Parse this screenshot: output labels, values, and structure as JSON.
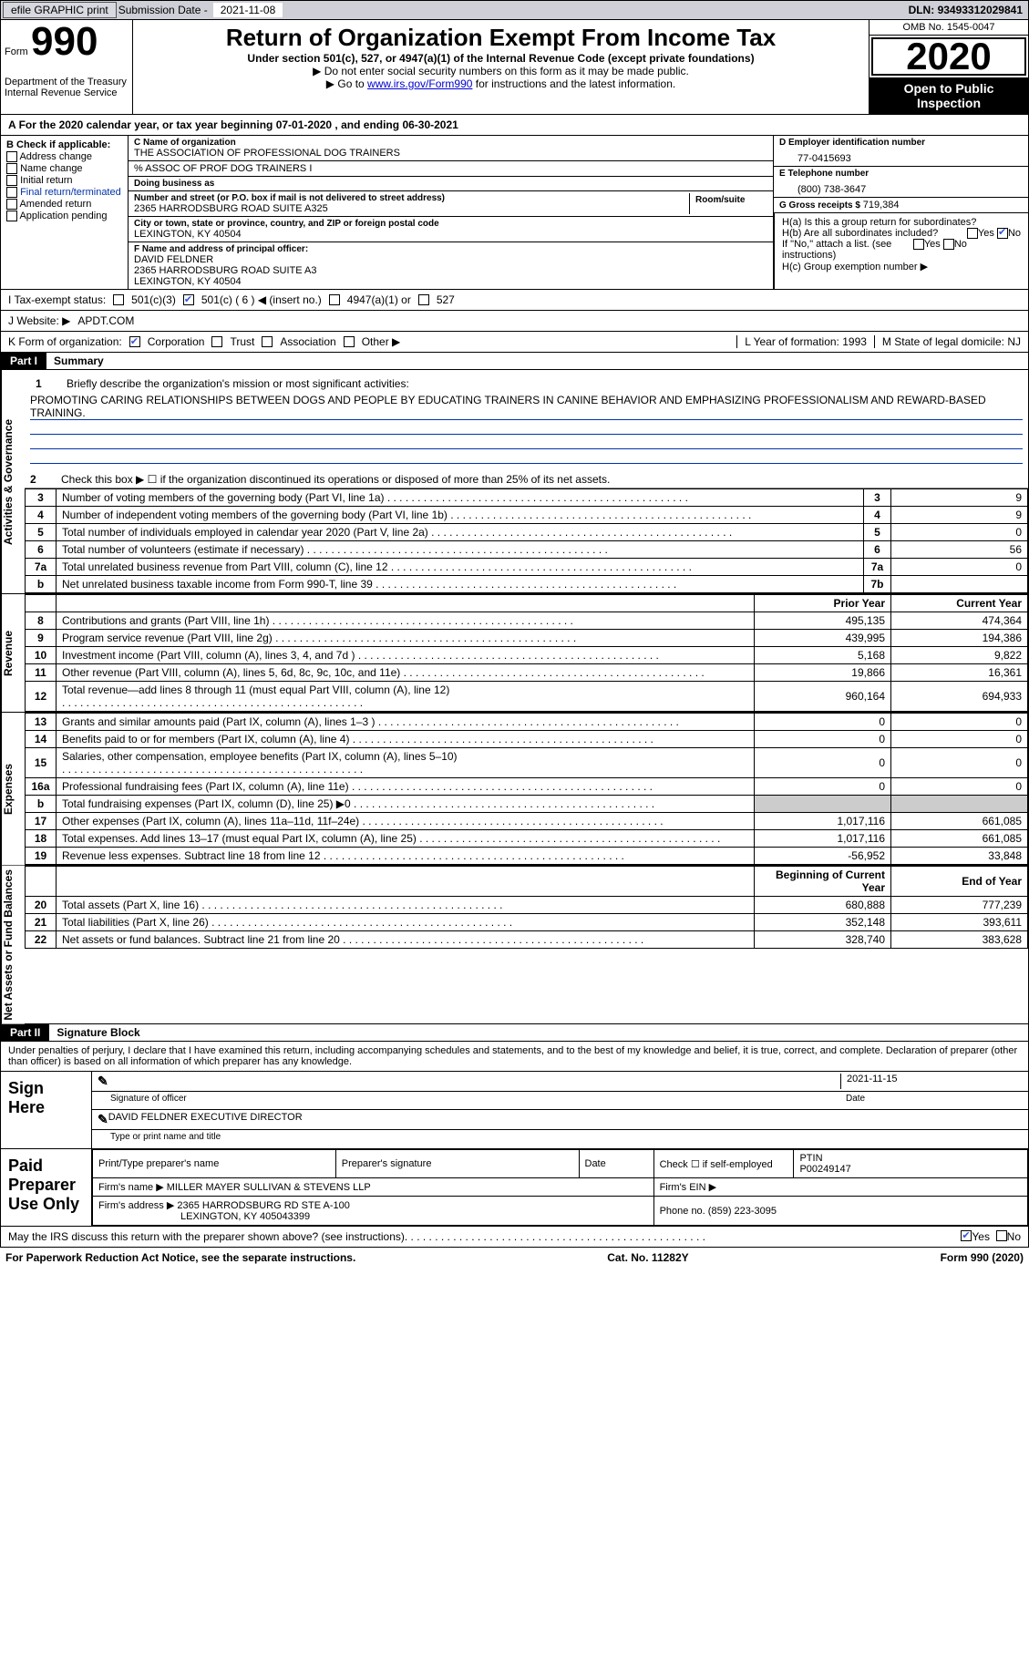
{
  "top_bar": {
    "efile_label": "efile GRAPHIC print",
    "sub_date_label": "Submission Date - ",
    "sub_date": "2021-11-08",
    "dln_label": "DLN: ",
    "dln": "93493312029841"
  },
  "header": {
    "form_label": "Form",
    "form_number": "990",
    "dept1": "Department of the Treasury",
    "dept2": "Internal Revenue Service",
    "title": "Return of Organization Exempt From Income Tax",
    "subtitle": "Under section 501(c), 527, or 4947(a)(1) of the Internal Revenue Code (except private foundations)",
    "note1": "▶ Do not enter social security numbers on this form as it may be made public.",
    "note2a": "▶ Go to ",
    "note2_link": "www.irs.gov/Form990",
    "note2b": " for instructions and the latest information.",
    "omb": "OMB No. 1545-0047",
    "year": "2020",
    "open": "Open to Public Inspection"
  },
  "line_A": {
    "prefix": "A",
    "text1": "For the 2020 calendar year, or tax year beginning ",
    "begin": "07-01-2020",
    "text2": " , and ending ",
    "end": "06-30-2021"
  },
  "box_B": {
    "header": "B Check if applicable:",
    "items": [
      "Address change",
      "Name change",
      "Initial return",
      "Final return/terminated",
      "Amended return",
      "Application pending"
    ]
  },
  "box_C": {
    "name_label": "C Name of organization",
    "name": "THE ASSOCIATION OF PROFESSIONAL DOG TRAINERS",
    "care_of": "% ASSOC OF PROF DOG TRAINERS I",
    "dba_label": "Doing business as",
    "street_label": "Number and street (or P.O. box if mail is not delivered to street address)",
    "street": "2365 HARRODSBURG ROAD SUITE A325",
    "room_label": "Room/suite",
    "city_label": "City or town, state or province, country, and ZIP or foreign postal code",
    "city": "LEXINGTON, KY  40504"
  },
  "box_D": {
    "label": "D Employer identification number",
    "value": "77-0415693"
  },
  "box_E": {
    "label": "E Telephone number",
    "value": "(800) 738-3647"
  },
  "box_G": {
    "label": "G Gross receipts $ ",
    "value": "719,384"
  },
  "box_F": {
    "label": "F Name and address of principal officer:",
    "name": "DAVID FELDNER",
    "addr1": "2365 HARRODSBURG ROAD SUITE A3",
    "addr2": "LEXINGTON, KY  40504"
  },
  "box_H": {
    "a_label": "H(a)  Is this a group return for subordinates?",
    "a_yes": "Yes",
    "a_no": "No",
    "b_label": "H(b)  Are all subordinates included?",
    "b_yes": "Yes",
    "b_no": "No",
    "b_note": "If \"No,\" attach a list. (see instructions)",
    "c_label": "H(c)  Group exemption number ▶"
  },
  "line_I": {
    "label": "I     Tax-exempt status:",
    "opts": [
      "501(c)(3)",
      "501(c) ( 6 ) ◀ (insert no.)",
      "4947(a)(1) or",
      "527"
    ],
    "checked_index": 1
  },
  "line_J": {
    "label": "J   Website: ▶ ",
    "value": "APDT.COM"
  },
  "line_K": {
    "label": "K Form of organization:",
    "opts": [
      "Corporation",
      "Trust",
      "Association",
      "Other ▶"
    ],
    "checked_index": 0,
    "year_label": "L Year of formation: ",
    "year": "1993",
    "state_label": "M State of legal domicile: ",
    "state": "NJ"
  },
  "part1": {
    "tag": "Part I",
    "title": "Summary",
    "section_labels": [
      "Activities & Governance",
      "Revenue",
      "Expenses",
      "Net Assets or Fund Balances"
    ],
    "q1_label": "Briefly describe the organization's mission or most significant activities:",
    "q1_text": "PROMOTING CARING RELATIONSHIPS BETWEEN DOGS AND PEOPLE BY EDUCATING TRAINERS IN CANINE BEHAVIOR AND EMPHASIZING PROFESSIONALISM AND REWARD-BASED TRAINING.",
    "q2_label": "Check this box ▶ ☐ if the organization discontinued its operations or disposed of more than 25% of its net assets.",
    "gov_rows": [
      {
        "n": "3",
        "text": "Number of voting members of the governing body (Part VI, line 1a)",
        "box": "3",
        "val": "9"
      },
      {
        "n": "4",
        "text": "Number of independent voting members of the governing body (Part VI, line 1b)",
        "box": "4",
        "val": "9"
      },
      {
        "n": "5",
        "text": "Total number of individuals employed in calendar year 2020 (Part V, line 2a)",
        "box": "5",
        "val": "0"
      },
      {
        "n": "6",
        "text": "Total number of volunteers (estimate if necessary)",
        "box": "6",
        "val": "56"
      },
      {
        "n": "7a",
        "text": "Total unrelated business revenue from Part VIII, column (C), line 12",
        "box": "7a",
        "val": "0"
      },
      {
        "n": "b",
        "text": "Net unrelated business taxable income from Form 990-T, line 39",
        "box": "7b",
        "val": ""
      }
    ],
    "col_headers": {
      "begin": "Beginning of Current Year",
      "end": "End of Year",
      "prior": "Prior Year",
      "current": "Current Year"
    },
    "revenue_rows": [
      {
        "n": "8",
        "text": "Contributions and grants (Part VIII, line 1h)",
        "py": "495,135",
        "cy": "474,364"
      },
      {
        "n": "9",
        "text": "Program service revenue (Part VIII, line 2g)",
        "py": "439,995",
        "cy": "194,386"
      },
      {
        "n": "10",
        "text": "Investment income (Part VIII, column (A), lines 3, 4, and 7d )",
        "py": "5,168",
        "cy": "9,822"
      },
      {
        "n": "11",
        "text": "Other revenue (Part VIII, column (A), lines 5, 6d, 8c, 9c, 10c, and 11e)",
        "py": "19,866",
        "cy": "16,361"
      },
      {
        "n": "12",
        "text": "Total revenue—add lines 8 through 11 (must equal Part VIII, column (A), line 12)",
        "py": "960,164",
        "cy": "694,933"
      }
    ],
    "expense_rows": [
      {
        "n": "13",
        "text": "Grants and similar amounts paid (Part IX, column (A), lines 1–3 )",
        "py": "0",
        "cy": "0"
      },
      {
        "n": "14",
        "text": "Benefits paid to or for members (Part IX, column (A), line 4)",
        "py": "0",
        "cy": "0"
      },
      {
        "n": "15",
        "text": "Salaries, other compensation, employee benefits (Part IX, column (A), lines 5–10)",
        "py": "0",
        "cy": "0"
      },
      {
        "n": "16a",
        "text": "Professional fundraising fees (Part IX, column (A), line 11e)",
        "py": "0",
        "cy": "0"
      },
      {
        "n": "b",
        "text": "Total fundraising expenses (Part IX, column (D), line 25) ▶0",
        "py": "",
        "cy": "",
        "shade": true
      },
      {
        "n": "17",
        "text": "Other expenses (Part IX, column (A), lines 11a–11d, 11f–24e)",
        "py": "1,017,116",
        "cy": "661,085"
      },
      {
        "n": "18",
        "text": "Total expenses. Add lines 13–17 (must equal Part IX, column (A), line 25)",
        "py": "1,017,116",
        "cy": "661,085"
      },
      {
        "n": "19",
        "text": "Revenue less expenses. Subtract line 18 from line 12",
        "py": "-56,952",
        "cy": "33,848"
      }
    ],
    "net_rows": [
      {
        "n": "20",
        "text": "Total assets (Part X, line 16)",
        "py": "680,888",
        "cy": "777,239"
      },
      {
        "n": "21",
        "text": "Total liabilities (Part X, line 26)",
        "py": "352,148",
        "cy": "393,611"
      },
      {
        "n": "22",
        "text": "Net assets or fund balances. Subtract line 21 from line 20",
        "py": "328,740",
        "cy": "383,628"
      }
    ]
  },
  "part2": {
    "tag": "Part II",
    "title": "Signature Block",
    "decl": "Under penalties of perjury, I declare that I have examined this return, including accompanying schedules and statements, and to the best of my knowledge and belief, it is true, correct, and complete. Declaration of preparer (other than officer) is based on all information of which preparer has any knowledge.",
    "sign_here": "Sign Here",
    "sig_officer": "Signature of officer",
    "sig_date": "2021-11-15",
    "date_label": "Date",
    "officer_name": "DAVID FELDNER  EXECUTIVE DIRECTOR",
    "officer_label": "Type or print name and title",
    "paid_label": "Paid Preparer Use Only",
    "prep_headers": [
      "Print/Type preparer's name",
      "Preparer's signature",
      "Date",
      "Check ☐ if self-employed",
      "PTIN"
    ],
    "ptin": "P00249147",
    "firm_name_label": "Firm's name     ▶ ",
    "firm_name": "MILLER MAYER SULLIVAN & STEVENS LLP",
    "firm_ein_label": "Firm's EIN ▶",
    "firm_addr_label": "Firm's address ▶ ",
    "firm_addr1": "2365 HARRODSBURG RD STE A-100",
    "firm_addr2": "LEXINGTON, KY  405043399",
    "phone_label": "Phone no. ",
    "phone": "(859) 223-3095",
    "discuss": "May the IRS discuss this return with the preparer shown above? (see instructions)",
    "yes": "Yes",
    "no": "No"
  },
  "footer": {
    "left": "For Paperwork Reduction Act Notice, see the separate instructions.",
    "mid": "Cat. No. 11282Y",
    "right": "Form 990 (2020)"
  },
  "colors": {
    "topbar_bg": "#cfcfd7",
    "link": "#0000cc",
    "mission_line": "#0033aa",
    "check_blue": "#3355dd",
    "shade": "#cccccc"
  }
}
